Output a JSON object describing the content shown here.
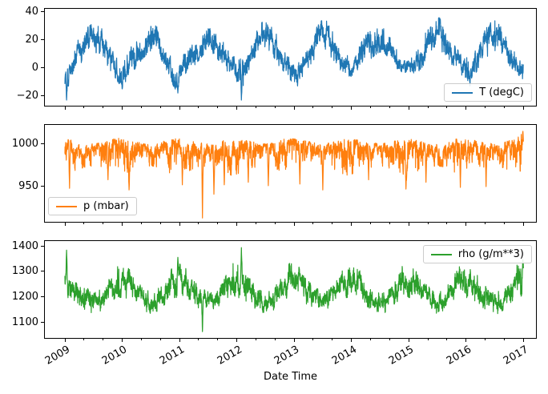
{
  "figure": {
    "background": "#ffffff",
    "text_color": "#000000"
  },
  "chart_data": {
    "type": "line",
    "title": "",
    "xlabel": "Date Time",
    "grid": false,
    "xlim": [
      2008.65,
      2017.22
    ],
    "xticks": [
      2009,
      2010,
      2011,
      2012,
      2013,
      2014,
      2015,
      2016,
      2017
    ],
    "xtick_labels": [
      "2009",
      "2010",
      "2011",
      "2012",
      "2013",
      "2014",
      "2015",
      "2016",
      "2017"
    ],
    "x_minor_ticks_per_year": 3,
    "x_data_range": [
      2009.0,
      2017.0
    ],
    "subplots": [
      {
        "name": "temperature",
        "legend": "T (degC)",
        "legend_loc": "lower right",
        "color": "#1f77b4",
        "ylim": [
          -27,
          42
        ],
        "yticks": [
          40,
          20,
          0,
          -20
        ],
        "ytick_labels": [
          "40",
          "20",
          "0",
          "−20"
        ],
        "months_start": "2009-01",
        "months_step": "1 month",
        "monthly_envelope_lo": [
          -17,
          -12,
          -6,
          0,
          4,
          8,
          11,
          10,
          5,
          0,
          -4,
          -10,
          -14,
          -11,
          -5,
          1,
          5,
          9,
          12,
          11,
          5,
          0,
          -6,
          -16,
          -10,
          -9,
          -4,
          1,
          5,
          9,
          11,
          10,
          6,
          0,
          -3,
          -6,
          -10,
          -20,
          -5,
          1,
          6,
          10,
          12,
          11,
          6,
          0,
          -4,
          -8,
          -12,
          -9,
          -7,
          0,
          5,
          9,
          12,
          11,
          6,
          1,
          -3,
          -6,
          -8,
          -5,
          -2,
          2,
          6,
          9,
          11,
          10,
          6,
          1,
          -2,
          -6,
          -7,
          -6,
          -3,
          1,
          5,
          9,
          12,
          11,
          6,
          1,
          -3,
          -5,
          -12,
          -8,
          -4,
          1,
          6,
          10,
          12,
          11,
          7,
          1,
          -4,
          -8,
          -8
        ],
        "monthly_envelope_hi": [
          5,
          8,
          14,
          22,
          26,
          30,
          32,
          33,
          26,
          19,
          12,
          8,
          6,
          9,
          16,
          23,
          27,
          31,
          36,
          33,
          25,
          18,
          12,
          6,
          7,
          10,
          16,
          24,
          28,
          31,
          33,
          32,
          27,
          20,
          13,
          9,
          7,
          8,
          17,
          24,
          29,
          32,
          34,
          33,
          26,
          19,
          12,
          8,
          5,
          8,
          14,
          23,
          27,
          31,
          35,
          33,
          26,
          20,
          12,
          9,
          8,
          10,
          18,
          24,
          28,
          31,
          34,
          31,
          26,
          21,
          13,
          9,
          8,
          10,
          16,
          23,
          27,
          32,
          37,
          34,
          26,
          19,
          14,
          10,
          7,
          10,
          16,
          23,
          28,
          32,
          34,
          33,
          27,
          20,
          12,
          8,
          6
        ],
        "anomalies": [
          {
            "t": 2009.03,
            "v": -23
          },
          {
            "t": 2010.0,
            "v": -15
          },
          {
            "t": 2010.97,
            "v": -18
          },
          {
            "t": 2012.08,
            "v": -23
          },
          {
            "t": 2013.06,
            "v": -13
          },
          {
            "t": 2016.07,
            "v": -13
          }
        ]
      },
      {
        "name": "pressure",
        "legend": "p (mbar)",
        "legend_loc": "lower left",
        "color": "#ff7f0e",
        "distribution": "top-biased",
        "ylim": [
          908.5,
          1022.5
        ],
        "yticks": [
          1000,
          950
        ],
        "ytick_labels": [
          "1000",
          "950"
        ],
        "months_start": "2009-01",
        "months_step": "1 month",
        "monthly_envelope_lo": [
          964,
          966,
          968,
          970,
          972,
          973,
          974,
          973,
          971,
          968,
          965,
          962,
          964,
          966,
          968,
          970,
          972,
          973,
          974,
          973,
          971,
          968,
          965,
          962,
          964,
          966,
          968,
          970,
          972,
          973,
          974,
          973,
          971,
          968,
          965,
          962,
          964,
          966,
          968,
          970,
          972,
          973,
          974,
          973,
          971,
          968,
          965,
          962,
          964,
          966,
          968,
          970,
          972,
          973,
          974,
          973,
          971,
          968,
          965,
          962,
          964,
          966,
          968,
          970,
          972,
          973,
          974,
          973,
          971,
          968,
          965,
          962,
          964,
          966,
          968,
          970,
          972,
          973,
          974,
          973,
          971,
          968,
          965,
          962,
          964,
          966,
          968,
          970,
          972,
          973,
          974,
          973,
          971,
          968,
          965,
          966,
          970
        ],
        "monthly_envelope_hi": [
          1006,
          1005,
          1004,
          1003,
          1002,
          1001,
          1000,
          1001,
          1002,
          1004,
          1006,
          1007,
          1006,
          1005,
          1004,
          1003,
          1002,
          1001,
          1000,
          1001,
          1002,
          1004,
          1006,
          1007,
          1006,
          1005,
          1004,
          1003,
          1002,
          1001,
          1000,
          1001,
          1002,
          1004,
          1006,
          1007,
          1006,
          1005,
          1004,
          1003,
          1002,
          1001,
          1000,
          1001,
          1002,
          1004,
          1006,
          1007,
          1006,
          1005,
          1004,
          1003,
          1002,
          1001,
          1000,
          1001,
          1002,
          1004,
          1006,
          1007,
          1006,
          1005,
          1004,
          1003,
          1002,
          1001,
          1000,
          1001,
          1002,
          1004,
          1006,
          1007,
          1006,
          1005,
          1004,
          1003,
          1002,
          1001,
          1000,
          1001,
          1002,
          1004,
          1006,
          1007,
          1006,
          1005,
          1004,
          1003,
          1002,
          1001,
          1000,
          1001,
          1002,
          1004,
          1006,
          1012,
          1014
        ],
        "anomalies": [
          {
            "t": 2009.08,
            "v": 948
          },
          {
            "t": 2009.75,
            "v": 958
          },
          {
            "t": 2010.12,
            "v": 946
          },
          {
            "t": 2011.05,
            "v": 952
          },
          {
            "t": 2011.4,
            "v": 913
          },
          {
            "t": 2011.6,
            "v": 941
          },
          {
            "t": 2011.78,
            "v": 952
          },
          {
            "t": 2012.2,
            "v": 955
          },
          {
            "t": 2012.55,
            "v": 951
          },
          {
            "t": 2013.1,
            "v": 953
          },
          {
            "t": 2013.5,
            "v": 946
          },
          {
            "t": 2014.3,
            "v": 958
          },
          {
            "t": 2014.95,
            "v": 947
          },
          {
            "t": 2015.3,
            "v": 955
          },
          {
            "t": 2015.9,
            "v": 949
          },
          {
            "t": 2016.35,
            "v": 950
          },
          {
            "t": 2016.99,
            "v": 1015
          }
        ]
      },
      {
        "name": "density",
        "legend": "rho (g/m**3)",
        "legend_loc": "upper right",
        "color": "#2ca02c",
        "ylim": [
          1037,
          1419
        ],
        "yticks": [
          1400,
          1300,
          1200,
          1100
        ],
        "ytick_labels": [
          "1400",
          "1300",
          "1200",
          "1100"
        ],
        "months_start": "2009-01",
        "months_step": "1 month",
        "monthly_envelope_lo": [
          1195,
          1192,
          1180,
          1162,
          1150,
          1140,
          1132,
          1132,
          1150,
          1170,
          1185,
          1195,
          1195,
          1192,
          1180,
          1162,
          1150,
          1140,
          1132,
          1132,
          1150,
          1170,
          1185,
          1195,
          1195,
          1192,
          1180,
          1162,
          1150,
          1140,
          1132,
          1132,
          1150,
          1170,
          1185,
          1195,
          1195,
          1192,
          1180,
          1162,
          1150,
          1140,
          1132,
          1132,
          1150,
          1170,
          1185,
          1195,
          1195,
          1192,
          1180,
          1162,
          1150,
          1140,
          1132,
          1132,
          1150,
          1170,
          1185,
          1195,
          1195,
          1192,
          1180,
          1162,
          1150,
          1140,
          1132,
          1132,
          1150,
          1170,
          1185,
          1195,
          1195,
          1192,
          1180,
          1162,
          1150,
          1140,
          1132,
          1132,
          1150,
          1170,
          1185,
          1195,
          1195,
          1192,
          1180,
          1162,
          1150,
          1140,
          1132,
          1132,
          1150,
          1170,
          1185,
          1195,
          1205
        ],
        "monthly_envelope_hi": [
          1340,
          1318,
          1298,
          1262,
          1242,
          1230,
          1220,
          1222,
          1242,
          1272,
          1300,
          1332,
          1330,
          1318,
          1298,
          1262,
          1242,
          1230,
          1220,
          1222,
          1242,
          1272,
          1300,
          1332,
          1330,
          1318,
          1298,
          1262,
          1242,
          1230,
          1220,
          1222,
          1242,
          1272,
          1300,
          1332,
          1330,
          1318,
          1298,
          1262,
          1242,
          1230,
          1220,
          1222,
          1242,
          1272,
          1300,
          1332,
          1330,
          1318,
          1298,
          1262,
          1242,
          1230,
          1220,
          1222,
          1242,
          1272,
          1300,
          1332,
          1330,
          1318,
          1298,
          1262,
          1242,
          1230,
          1220,
          1222,
          1242,
          1272,
          1300,
          1332,
          1330,
          1318,
          1298,
          1262,
          1242,
          1230,
          1220,
          1222,
          1242,
          1272,
          1300,
          1332,
          1330,
          1318,
          1298,
          1262,
          1242,
          1230,
          1220,
          1222,
          1242,
          1272,
          1300,
          1338,
          1350
        ],
        "anomalies": [
          {
            "t": 2009.03,
            "v": 1383
          },
          {
            "t": 2010.97,
            "v": 1355
          },
          {
            "t": 2011.4,
            "v": 1062
          },
          {
            "t": 2012.08,
            "v": 1393
          },
          {
            "t": 2016.99,
            "v": 1345
          }
        ]
      }
    ]
  }
}
